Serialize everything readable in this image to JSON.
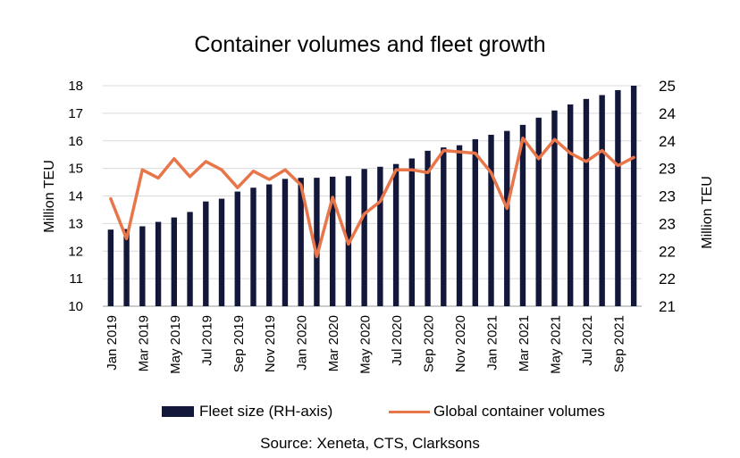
{
  "chart_data": {
    "type": "bar+line",
    "title": "Container volumes and fleet growth",
    "source": "Source: Xeneta, CTS, Clarksons",
    "x_labels": [
      "Jan 2019",
      "Mar 2019",
      "May 2019",
      "Jul 2019",
      "Sep 2019",
      "Nov 2019",
      "Jan 2020",
      "Mar 2020",
      "May 2020",
      "Jul 2020",
      "Sep 2020",
      "Nov 2020",
      "Jan 2021",
      "Mar 2021",
      "May 2021",
      "Jul 2021",
      "Sep 2021"
    ],
    "left_axis": {
      "label": "Million TEU",
      "range": [
        10,
        18
      ],
      "ticks": [
        "10",
        "11",
        "12",
        "13",
        "14",
        "15",
        "16",
        "17",
        "18"
      ]
    },
    "right_axis": {
      "label": "Million TEU",
      "range": [
        21,
        25
      ],
      "ticks": [
        "21",
        "22",
        "22",
        "23",
        "23",
        "23",
        "24",
        "24",
        "25"
      ]
    },
    "series": [
      {
        "name": "Fleet size (RH-axis)",
        "type": "bar",
        "axis": "right",
        "color": "#13173a",
        "values": [
          22.39,
          22.4,
          22.45,
          22.53,
          22.61,
          22.71,
          22.9,
          22.95,
          23.08,
          23.15,
          23.21,
          23.31,
          23.33,
          23.33,
          23.35,
          23.36,
          23.49,
          23.53,
          23.58,
          23.68,
          23.82,
          23.88,
          23.92,
          24.03,
          24.11,
          24.18,
          24.29,
          24.42,
          24.55,
          24.66,
          24.76,
          24.83,
          24.92,
          25.0
        ]
      },
      {
        "name": "Global container volumes",
        "type": "line",
        "axis": "left",
        "color": "#e8764a",
        "values": [
          13.9,
          12.45,
          14.95,
          14.65,
          15.35,
          14.7,
          15.25,
          14.95,
          14.3,
          14.9,
          14.6,
          14.95,
          14.4,
          11.8,
          13.95,
          12.25,
          13.35,
          13.8,
          14.95,
          14.95,
          14.85,
          15.65,
          15.6,
          15.55,
          14.85,
          13.55,
          16.1,
          15.35,
          16.05,
          15.55,
          15.25,
          15.65,
          15.1,
          15.4
        ]
      }
    ]
  },
  "legend": {
    "bar_label": "Fleet size (RH-axis)",
    "line_label": "Global container volumes"
  }
}
